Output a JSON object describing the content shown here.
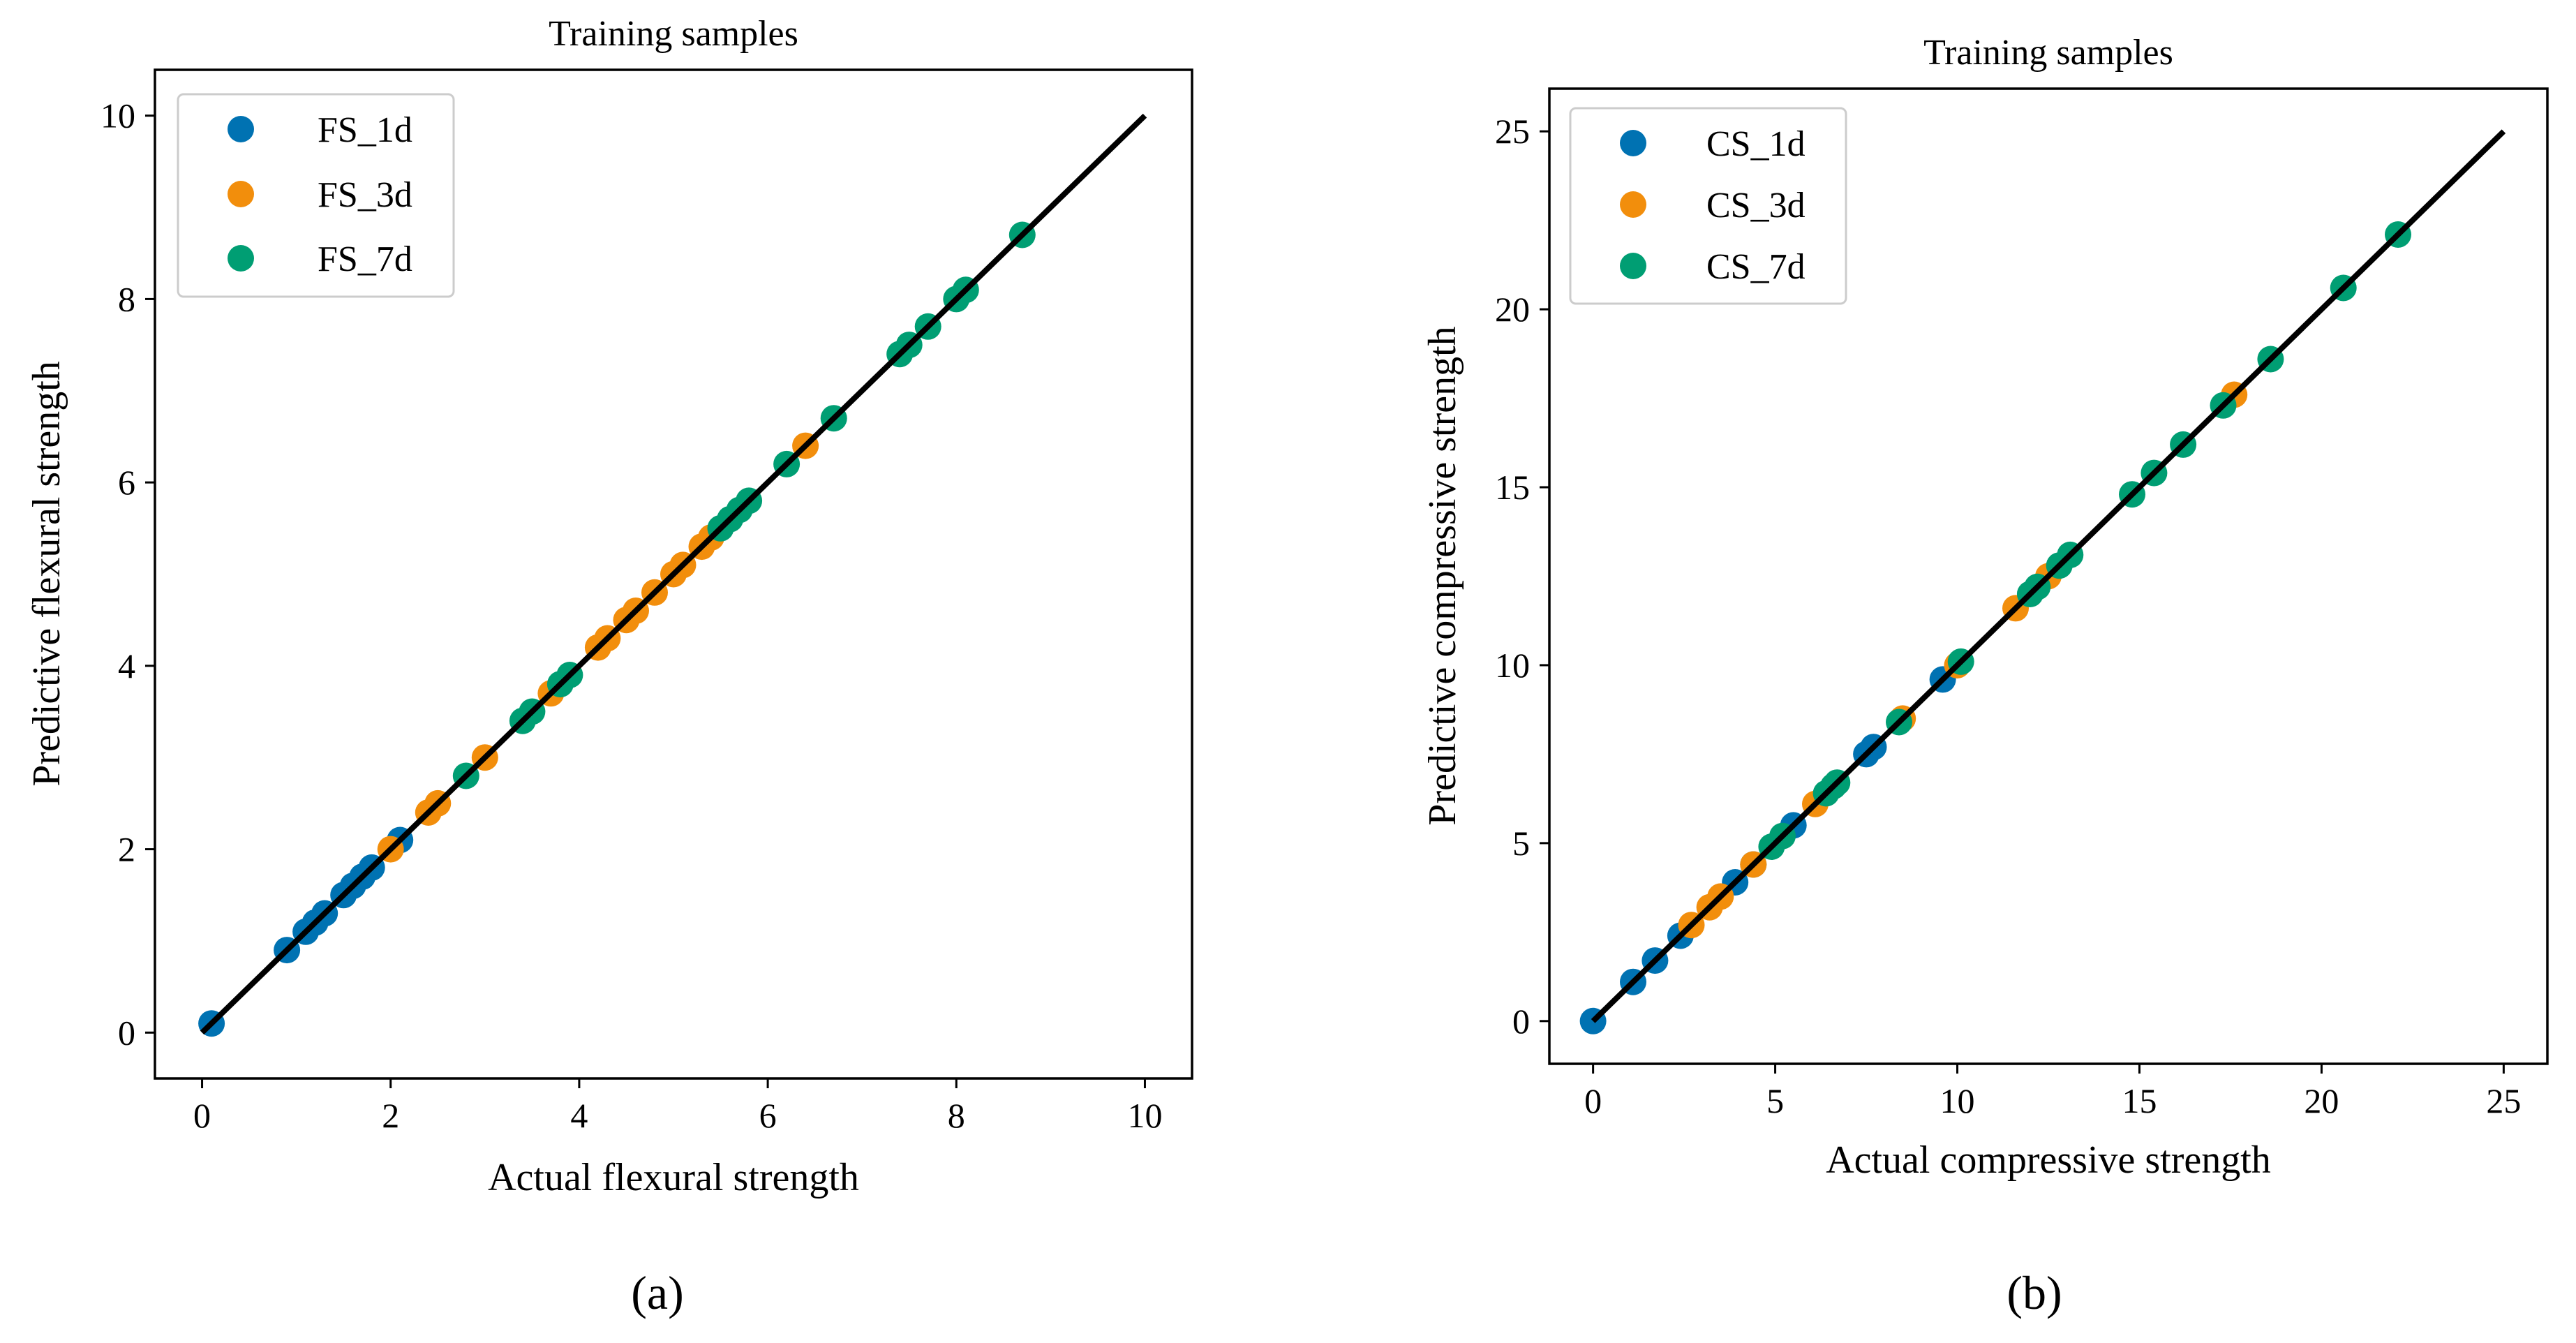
{
  "chart_data": [
    {
      "type": "scatter",
      "title": "Training samples",
      "xlabel": "Actual flexural strength",
      "ylabel": "Predictive flexural strength",
      "xlim": [
        -0.5,
        10.5
      ],
      "ylim": [
        -0.5,
        10.5
      ],
      "xticks": [
        0,
        2,
        4,
        6,
        8,
        10
      ],
      "yticks": [
        0,
        2,
        4,
        6,
        8,
        10
      ],
      "xtick_labels": [
        "0",
        "2",
        "4",
        "6",
        "8",
        "10"
      ],
      "ytick_labels": [
        "0",
        "2",
        "4",
        "6",
        "8",
        "10"
      ],
      "legend_position": "top-left",
      "reference_line": {
        "from": [
          0,
          0
        ],
        "to": [
          10,
          10
        ]
      },
      "panel_label": "(a)",
      "series": [
        {
          "name": "FS_1d",
          "color": "#0072B2",
          "x": [
            0.1,
            0.9,
            1.1,
            1.2,
            1.3,
            1.5,
            1.6,
            1.7,
            1.8,
            2.1
          ],
          "y": [
            0.1,
            0.9,
            1.1,
            1.2,
            1.3,
            1.5,
            1.6,
            1.7,
            1.8,
            2.1
          ]
        },
        {
          "name": "FS_3d",
          "color": "#F28E0C",
          "x": [
            2.0,
            2.4,
            2.5,
            3.0,
            3.7,
            4.2,
            4.3,
            4.5,
            4.6,
            4.8,
            5.0,
            5.1,
            5.3,
            5.4,
            6.4
          ],
          "y": [
            2.0,
            2.4,
            2.5,
            3.0,
            3.7,
            4.2,
            4.3,
            4.5,
            4.6,
            4.8,
            5.0,
            5.1,
            5.3,
            5.4,
            6.4
          ]
        },
        {
          "name": "FS_7d",
          "color": "#009E73",
          "x": [
            2.8,
            3.4,
            3.5,
            3.8,
            3.9,
            5.5,
            5.6,
            5.7,
            5.8,
            6.2,
            6.7,
            7.4,
            7.5,
            7.7,
            8.0,
            8.1,
            8.7
          ],
          "y": [
            2.8,
            3.4,
            3.5,
            3.8,
            3.9,
            5.5,
            5.6,
            5.7,
            5.8,
            6.2,
            6.7,
            7.4,
            7.5,
            7.7,
            8.0,
            8.1,
            8.7
          ]
        }
      ]
    },
    {
      "type": "scatter",
      "title": "Training samples",
      "xlabel": "Actual compressive strength",
      "ylabel": "Predictive compressive strength",
      "xlim": [
        -1.2,
        26.2
      ],
      "ylim": [
        -1.2,
        26.2
      ],
      "xticks": [
        0,
        5,
        10,
        15,
        20,
        25
      ],
      "yticks": [
        0,
        5,
        10,
        15,
        20,
        25
      ],
      "xtick_labels": [
        "0",
        "5",
        "10",
        "15",
        "20",
        "25"
      ],
      "ytick_labels": [
        "0",
        "5",
        "10",
        "15",
        "20",
        "25"
      ],
      "legend_position": "top-left",
      "reference_line": {
        "from": [
          0,
          0
        ],
        "to": [
          25,
          25
        ]
      },
      "panel_label": "(b)",
      "series": [
        {
          "name": "CS_1d",
          "color": "#0072B2",
          "x": [
            0.0,
            1.1,
            1.7,
            2.4,
            3.9,
            4.4,
            5.5,
            7.5,
            7.7,
            9.6
          ],
          "y": [
            0.0,
            1.1,
            1.7,
            2.4,
            3.9,
            4.4,
            5.5,
            7.5,
            7.7,
            9.6
          ]
        },
        {
          "name": "CS_3d",
          "color": "#F28E0C",
          "x": [
            2.7,
            3.2,
            3.5,
            4.4,
            6.1,
            8.5,
            10.0,
            11.6,
            12.5,
            17.6
          ],
          "y": [
            2.7,
            3.2,
            3.5,
            4.4,
            6.1,
            8.5,
            10.0,
            11.6,
            12.5,
            17.6
          ]
        },
        {
          "name": "CS_7d",
          "color": "#009E73",
          "x": [
            4.9,
            5.2,
            6.4,
            6.6,
            6.7,
            8.4,
            10.1,
            12.0,
            12.2,
            12.8,
            13.1,
            14.8,
            15.4,
            16.2,
            17.3,
            18.6,
            20.6,
            22.1
          ],
          "y": [
            4.9,
            5.2,
            6.4,
            6.6,
            6.7,
            8.4,
            10.1,
            12.0,
            12.2,
            12.8,
            13.1,
            14.8,
            15.4,
            16.2,
            17.3,
            18.6,
            20.6,
            22.1
          ]
        }
      ]
    }
  ]
}
